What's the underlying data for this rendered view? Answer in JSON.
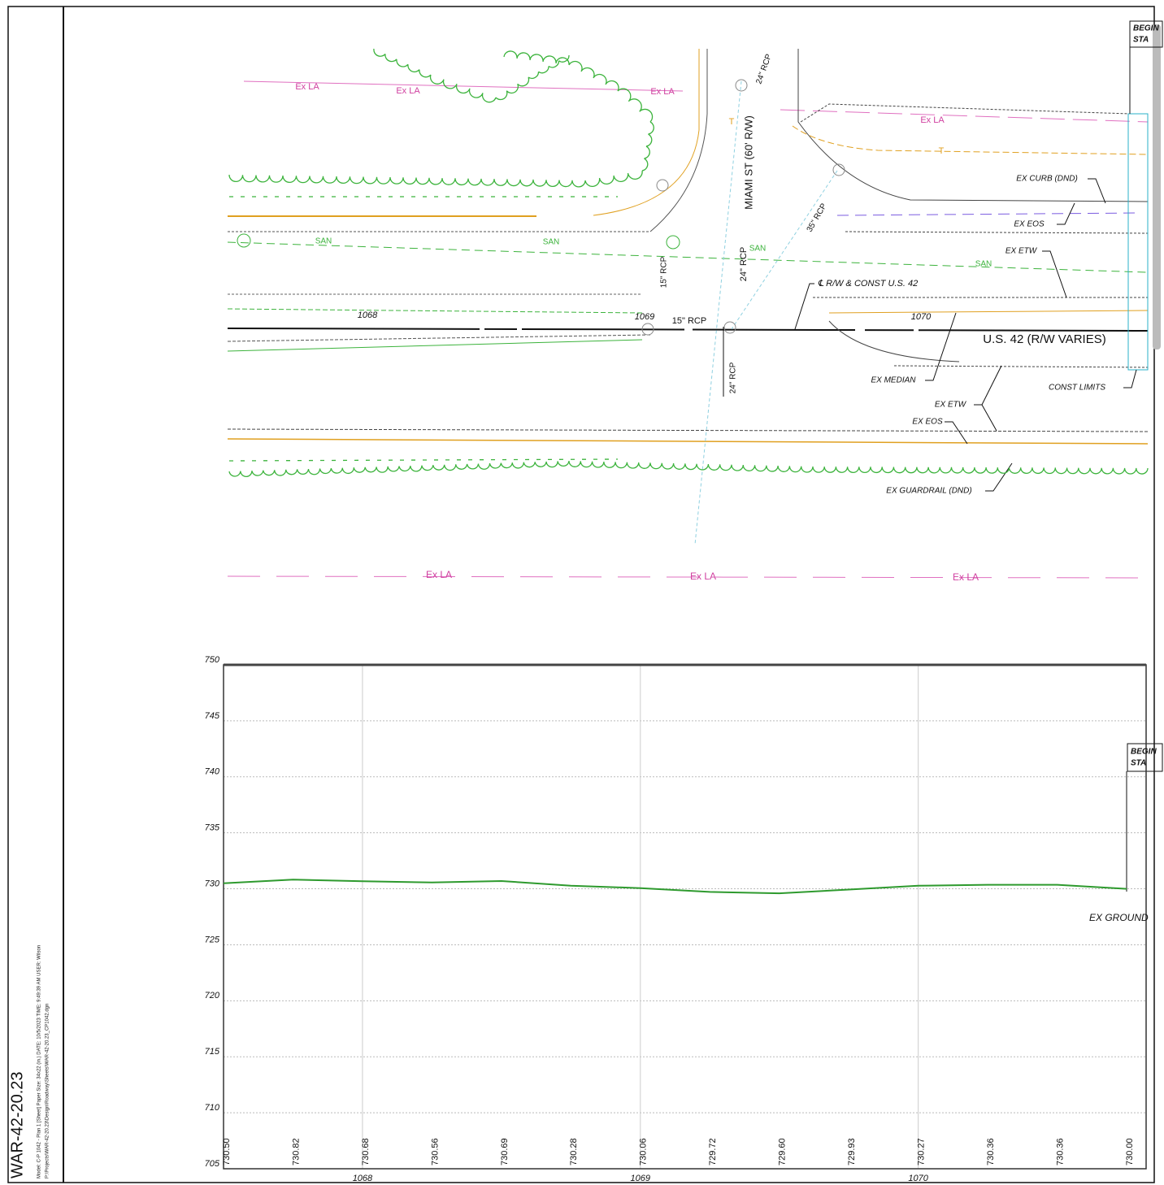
{
  "sheet": {
    "title": "WAR-42-20.23",
    "info": [
      "Model: C-P 1042 - Plan 1 [Sheet]  Paper Size: 34x22 (in.)  DATE: 10/5/2023  TIME: 9:49:39 AM  USER: Wilson",
      "P:\\Projects\\WAR-42-20.23\\Design\\Roadway\\Sheets\\WAR-42-20.23_CP1042.dgn"
    ]
  },
  "plan": {
    "labels": [
      "Ex LA",
      "Ex LA",
      "Ex LA",
      "Ex LA",
      "Ex LA",
      "Ex LA",
      "Ex LA",
      "MIAMI ST (60' R/W)",
      "24\" RCP",
      "SAN",
      "SAN",
      "SAN",
      "SAN",
      "15\" RCP",
      "24\" RCP",
      "35\" RCP",
      "15\" RCP",
      "24\" RCP",
      "1068",
      "1069",
      "1070",
      "U.S. 42 (R/W VARIES)",
      "EX CURB (DND)",
      "EX EOS",
      "EX ETW",
      "℄ R/W & CONST U.S. 42",
      "EX MEDIAN",
      "CONST LIMITS",
      "EX ETW",
      "EX EOS",
      "EX GUARDRAIL (DND)",
      "T",
      "T"
    ],
    "begin_station": [
      "BEGIN",
      "STA"
    ]
  },
  "chart_data": {
    "type": "line",
    "x": [
      1067.5,
      1067.75,
      1068,
      1068.25,
      1068.5,
      1068.75,
      1069,
      1069.25,
      1069.5,
      1069.75,
      1070,
      1070.25,
      1070.5,
      1070.75
    ],
    "values": [
      730.5,
      730.82,
      730.68,
      730.56,
      730.69,
      730.28,
      730.06,
      729.72,
      729.6,
      729.93,
      730.27,
      730.36,
      730.36,
      730
    ],
    "value_labels": [
      "730.50",
      "730.82",
      "730.68",
      "730.56",
      "730.69",
      "730.28",
      "730.06",
      "729.72",
      "729.60",
      "729.93",
      "730.27",
      "730.36",
      "730.36",
      "730.00"
    ],
    "color": "#2e9a2e",
    "label": "EX GROUND",
    "begin_station": [
      "BEGIN",
      "STA"
    ],
    "xlim": [
      1067.5,
      1070.82
    ],
    "xticks": [
      1068,
      1069,
      1070
    ],
    "ylim": [
      705,
      750
    ],
    "yticks": [
      705,
      710,
      715,
      720,
      725,
      730,
      735,
      740,
      745,
      750
    ],
    "grid": true
  }
}
